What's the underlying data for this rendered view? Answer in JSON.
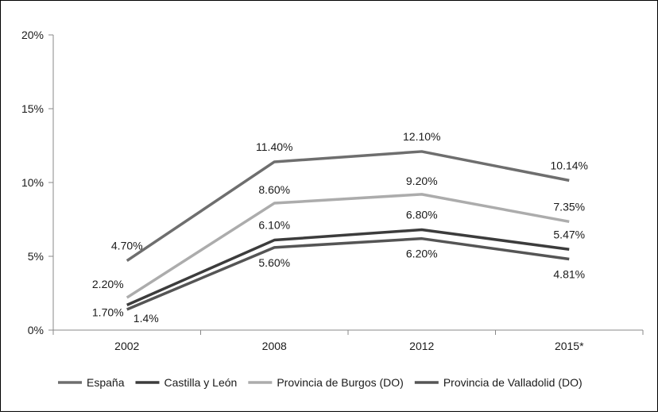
{
  "chart_data": {
    "type": "line",
    "categories": [
      "2002",
      "2008",
      "2012",
      "2015*"
    ],
    "ylim": [
      0,
      20
    ],
    "yticks": [
      0,
      5,
      10,
      15,
      20
    ],
    "ytick_labels": [
      "0%",
      "5%",
      "10%",
      "15%",
      "20%"
    ],
    "grid": false,
    "legend_position": "bottom",
    "series": [
      {
        "name": "España",
        "color": "#6e6e6e",
        "values": [
          4.7,
          11.4,
          12.1,
          10.14
        ],
        "labels": [
          "4.70%",
          "11.40%",
          "12.10%",
          "10.14%"
        ]
      },
      {
        "name": "Castilla y León",
        "color": "#3c3c3c",
        "values": [
          1.7,
          6.1,
          6.8,
          5.47
        ],
        "labels": [
          "1.70%",
          "6.10%",
          "6.80%",
          "5.47%"
        ]
      },
      {
        "name": "Provincia de Burgos (DO)",
        "color": "#acacac",
        "values": [
          2.2,
          8.6,
          9.2,
          7.35
        ],
        "labels": [
          "2.20%",
          "8.60%",
          "9.20%",
          "7.35%"
        ]
      },
      {
        "name": "Provincia de Valladolid (DO)",
        "color": "#555555",
        "values": [
          1.4,
          5.6,
          6.2,
          4.81
        ],
        "labels": [
          "1.4%",
          "5.60%",
          "6.20%",
          "4.81%"
        ]
      }
    ]
  }
}
